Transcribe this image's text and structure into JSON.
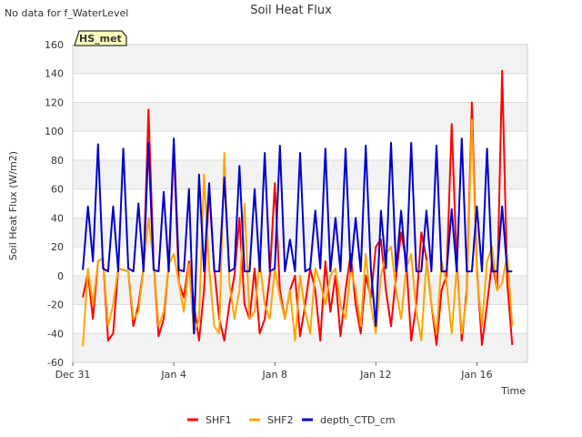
{
  "no_data_note": "No data for f_WaterLevel",
  "chart_data": {
    "type": "line",
    "title": "Soil Heat Flux",
    "xlabel": "Time",
    "ylabel": "Soil Heat Flux (W/m2)",
    "badge": "HS_met",
    "xlim": [
      0,
      18
    ],
    "ylim": [
      -60,
      160
    ],
    "x_ticks": [
      {
        "day": 0,
        "label": "Dec 31"
      },
      {
        "day": 4,
        "label": "Jan 4"
      },
      {
        "day": 8,
        "label": "Jan 8"
      },
      {
        "day": 12,
        "label": "Jan 12"
      },
      {
        "day": 16,
        "label": "Jan 16"
      }
    ],
    "y_ticks": [
      -60,
      -40,
      -20,
      0,
      20,
      40,
      60,
      80,
      100,
      120,
      140,
      160
    ],
    "x": [
      0.4,
      0.6,
      0.8,
      1.0,
      1.2,
      1.4,
      1.6,
      1.8,
      2.0,
      2.2,
      2.4,
      2.6,
      2.8,
      3.0,
      3.2,
      3.4,
      3.6,
      3.8,
      4.0,
      4.2,
      4.4,
      4.6,
      4.8,
      5.0,
      5.2,
      5.4,
      5.6,
      5.8,
      6.0,
      6.2,
      6.4,
      6.6,
      6.8,
      7.0,
      7.2,
      7.4,
      7.6,
      7.8,
      8.0,
      8.2,
      8.4,
      8.6,
      8.8,
      9.0,
      9.2,
      9.4,
      9.6,
      9.8,
      10.0,
      10.2,
      10.4,
      10.6,
      10.8,
      11.0,
      11.2,
      11.4,
      11.6,
      11.8,
      12.0,
      12.2,
      12.4,
      12.6,
      12.8,
      13.0,
      13.2,
      13.4,
      13.6,
      13.8,
      14.0,
      14.2,
      14.4,
      14.6,
      14.8,
      15.0,
      15.2,
      15.4,
      15.6,
      15.8,
      16.0,
      16.2,
      16.4,
      16.6,
      16.8,
      17.0,
      17.2,
      17.4
    ],
    "series": [
      {
        "name": "SHF1",
        "color": "#ff0000",
        "values": [
          -15,
          2,
          -30,
          10,
          12,
          -45,
          -40,
          5,
          4,
          3,
          -35,
          -20,
          5,
          115,
          10,
          -42,
          -30,
          8,
          90,
          -5,
          -15,
          10,
          -20,
          -45,
          -10,
          60,
          5,
          -30,
          -45,
          -20,
          0,
          40,
          -20,
          -30,
          5,
          -40,
          -30,
          0,
          64,
          -10,
          -30,
          -10,
          0,
          -42,
          -20,
          5,
          -10,
          -45,
          10,
          -25,
          0,
          -42,
          -10,
          15,
          -20,
          -40,
          0,
          -15,
          20,
          25,
          -10,
          -35,
          0,
          30,
          10,
          -45,
          -20,
          30,
          12,
          -20,
          -48,
          -10,
          0,
          105,
          10,
          -45,
          -10,
          120,
          5,
          -48,
          -20,
          10,
          -10,
          142,
          -5,
          -48
        ],
        "dash": false
      },
      {
        "name": "SHF2",
        "color": "#ffa500",
        "values": [
          -49,
          5,
          -20,
          10,
          12,
          -35,
          -20,
          5,
          4,
          3,
          -30,
          -25,
          5,
          40,
          10,
          -35,
          -25,
          8,
          15,
          -5,
          -25,
          8,
          -40,
          -30,
          70,
          5,
          -35,
          -40,
          85,
          -5,
          -30,
          -10,
          50,
          -30,
          -25,
          10,
          -20,
          -30,
          5,
          -15,
          -30,
          -10,
          -45,
          0,
          -25,
          -40,
          5,
          -5,
          -20,
          0,
          5,
          -20,
          -30,
          5,
          -10,
          -35,
          15,
          -20,
          -40,
          0,
          15,
          20,
          -10,
          -30,
          5,
          15,
          -25,
          -45,
          10,
          -20,
          -40,
          10,
          -5,
          -40,
          5,
          -40,
          -15,
          108,
          0,
          -35,
          10,
          20,
          -10,
          -5,
          15,
          -35
        ],
        "dash": false
      },
      {
        "name": "depth_CTD_cm",
        "color": "#0000cc",
        "values": [
          4,
          48,
          10,
          91,
          5,
          3,
          48,
          3,
          88,
          5,
          3,
          50,
          3,
          92,
          4,
          3,
          58,
          3,
          95,
          4,
          3,
          60,
          -40,
          70,
          3,
          64,
          3,
          3,
          68,
          3,
          5,
          76,
          3,
          3,
          60,
          3,
          85,
          3,
          5,
          90,
          3,
          25,
          3,
          85,
          3,
          5,
          45,
          5,
          88,
          3,
          40,
          3,
          88,
          3,
          40,
          3,
          90,
          5,
          -35,
          45,
          5,
          92,
          3,
          45,
          3,
          92,
          3,
          3,
          45,
          3,
          90,
          3,
          3,
          46,
          3,
          95,
          3,
          3,
          48,
          3,
          88,
          3,
          3,
          48,
          3,
          3
        ],
        "dash": false
      }
    ]
  }
}
